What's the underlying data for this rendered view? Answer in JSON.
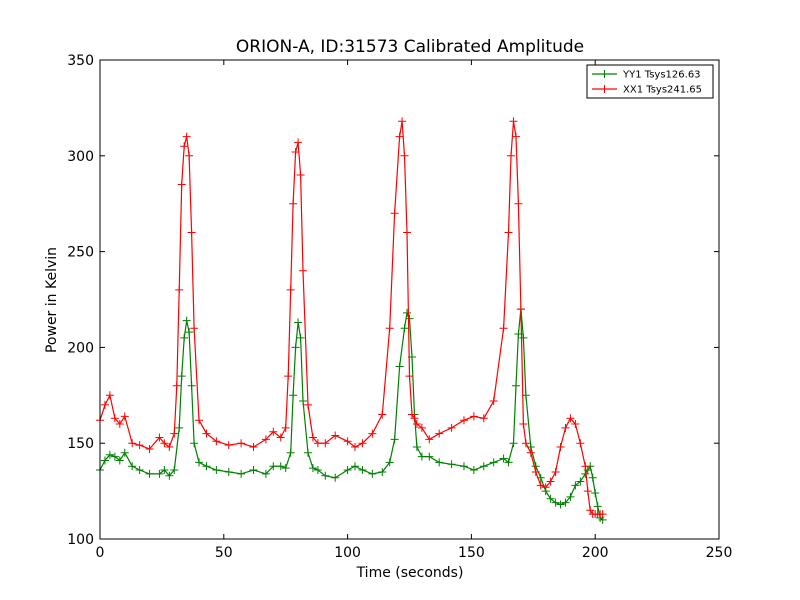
{
  "chart_data": {
    "type": "line",
    "title": "ORION-A, ID:31573 Calibrated Amplitude",
    "xlabel": "Time (seconds)",
    "ylabel": "Power in Kelvin",
    "xlim": [
      0,
      250
    ],
    "ylim": [
      100,
      350
    ],
    "xticks": [
      "0",
      "50",
      "100",
      "150",
      "200",
      "250"
    ],
    "yticks": [
      "100",
      "150",
      "200",
      "250",
      "300",
      "350"
    ],
    "grid": false,
    "legend_position": "top-right",
    "marker": "+",
    "series": [
      {
        "name": "YY1 Tsys126.63",
        "color": "#008000",
        "x": [
          0,
          2,
          4,
          6,
          8,
          10,
          13,
          16,
          20,
          24,
          26,
          28,
          30,
          32,
          33,
          34,
          35,
          36,
          37,
          38,
          40,
          43,
          47,
          52,
          57,
          62,
          67,
          70,
          73,
          75,
          77,
          78,
          79,
          80,
          81,
          82,
          84,
          86,
          88,
          91,
          95,
          100,
          103,
          106,
          110,
          114,
          117,
          119,
          121,
          123,
          124,
          125,
          126,
          127,
          128,
          130,
          133,
          137,
          142,
          147,
          151,
          155,
          159,
          163,
          165,
          167,
          168,
          169,
          170,
          171,
          172,
          174,
          176,
          178,
          180,
          182,
          184,
          186,
          188,
          190,
          192,
          194,
          196,
          197,
          198,
          199,
          200,
          201,
          202,
          203
        ],
        "values": [
          136,
          141,
          144,
          143,
          141,
          145,
          138,
          136,
          134,
          134,
          136,
          133,
          136,
          158,
          185,
          205,
          214,
          208,
          180,
          150,
          140,
          138,
          136,
          135,
          134,
          136,
          134,
          138,
          138,
          137,
          145,
          175,
          200,
          213,
          205,
          172,
          145,
          137,
          136,
          133,
          132,
          136,
          138,
          136,
          134,
          135,
          140,
          152,
          190,
          210,
          218,
          215,
          195,
          165,
          148,
          143,
          143,
          140,
          139,
          138,
          136,
          138,
          140,
          142,
          140,
          150,
          180,
          207,
          220,
          205,
          175,
          148,
          138,
          132,
          125,
          121,
          119,
          118,
          119,
          122,
          128,
          130,
          134,
          136,
          138,
          132,
          124,
          117,
          111,
          110
        ]
      },
      {
        "name": "XX1 Tsys241.65",
        "color": "#ff0000",
        "x": [
          0,
          2,
          4,
          6,
          8,
          10,
          13,
          16,
          20,
          24,
          26,
          28,
          30,
          31,
          32,
          33,
          34,
          35,
          36,
          37,
          38,
          40,
          43,
          47,
          52,
          57,
          62,
          67,
          70,
          73,
          75,
          76,
          77,
          78,
          79,
          80,
          81,
          82,
          84,
          86,
          88,
          91,
          95,
          100,
          103,
          106,
          110,
          114,
          117,
          119,
          121,
          122,
          123,
          124,
          125,
          126,
          127,
          128,
          130,
          133,
          137,
          142,
          147,
          151,
          155,
          159,
          163,
          165,
          166,
          167,
          168,
          169,
          170,
          171,
          172,
          174,
          176,
          178,
          180,
          182,
          184,
          186,
          188,
          190,
          192,
          194,
          196,
          197,
          198,
          199,
          200,
          201,
          202,
          203
        ],
        "values": [
          162,
          170,
          175,
          163,
          160,
          164,
          150,
          149,
          147,
          153,
          150,
          148,
          155,
          180,
          230,
          285,
          305,
          310,
          300,
          260,
          210,
          162,
          155,
          151,
          149,
          150,
          148,
          152,
          156,
          153,
          158,
          185,
          230,
          275,
          302,
          307,
          290,
          240,
          170,
          153,
          150,
          150,
          154,
          151,
          148,
          150,
          155,
          165,
          210,
          270,
          310,
          318,
          300,
          260,
          185,
          165,
          163,
          160,
          158,
          152,
          155,
          158,
          162,
          164,
          163,
          172,
          210,
          260,
          300,
          318,
          310,
          275,
          220,
          160,
          150,
          145,
          135,
          128,
          127,
          130,
          135,
          148,
          158,
          163,
          160,
          150,
          138,
          125,
          115,
          113,
          113,
          113,
          113,
          113
        ]
      }
    ]
  }
}
